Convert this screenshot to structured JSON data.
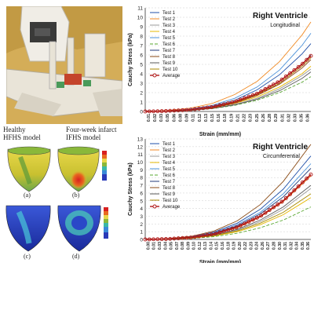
{
  "left_panel": {
    "model_labels": {
      "healthy_line1": "Healthy",
      "healthy_line2": "HFHS model",
      "infarct_line1": "Four-week infarct",
      "infarct_line2": "IFHS model"
    },
    "subfigure_labels": [
      "(a)",
      "(b)",
      "(c)",
      "(d)"
    ],
    "colors": {
      "photo_bg": "#c8a24a",
      "rig": "#ece7db",
      "heart_yellow": "#d9c73a",
      "heart_blue": "#2f3fc8"
    }
  },
  "chart_data": [
    {
      "type": "line",
      "title": "Right Ventricle",
      "subtitle": "Longitudinal",
      "xlabel": "Strain (mm/mm)",
      "ylabel": "Cauchy Stress (kPa)",
      "ylim": [
        0,
        11
      ],
      "yticks": [
        "0",
        "1",
        "2",
        "3",
        "4",
        "5",
        "6",
        "7",
        "8",
        "9",
        "10",
        "11"
      ],
      "xticks": [
        "0.01",
        "0.02",
        "0.03",
        "0.05",
        "0.06",
        "0.08",
        "0.09",
        "0.11",
        "0.12",
        "0.13",
        "0.15",
        "0.16",
        "0.18",
        "0.19",
        "0.21",
        "0.22",
        "0.23",
        "0.25",
        "0.26",
        "0.28",
        "0.29",
        "0.31",
        "0.32",
        "0.33",
        "0.35",
        "0.36"
      ],
      "xlim": [
        0,
        0.37
      ],
      "legend_position": "top-left",
      "grid": "dashed-horizontal",
      "series": [
        {
          "name": "Test 1",
          "color": "#1f4fa8",
          "dash": "",
          "x": [
            0,
            0.05,
            0.1,
            0.15,
            0.2,
            0.25,
            0.3,
            0.35,
            0.37
          ],
          "y": [
            0,
            0.05,
            0.2,
            0.55,
            1.2,
            2.3,
            3.9,
            6.1,
            7.2
          ]
        },
        {
          "name": "Test 2",
          "color": "#f08a24",
          "dash": "",
          "x": [
            0,
            0.05,
            0.1,
            0.15,
            0.2,
            0.25,
            0.3,
            0.35,
            0.37
          ],
          "y": [
            0,
            0.1,
            0.35,
            0.85,
            1.8,
            3.2,
            5.3,
            8.1,
            9.5
          ]
        },
        {
          "name": "Test 3",
          "color": "#9a9a9a",
          "dash": "",
          "x": [
            0,
            0.05,
            0.1,
            0.15,
            0.2,
            0.25,
            0.3,
            0.35,
            0.37
          ],
          "y": [
            0,
            0.03,
            0.12,
            0.35,
            0.75,
            1.4,
            2.4,
            3.8,
            4.5
          ]
        },
        {
          "name": "Test 4",
          "color": "#e6b800",
          "dash": "",
          "x": [
            0,
            0.05,
            0.1,
            0.15,
            0.2,
            0.25,
            0.3,
            0.35,
            0.37
          ],
          "y": [
            0,
            0.04,
            0.16,
            0.4,
            0.85,
            1.55,
            2.6,
            4.0,
            4.8
          ]
        },
        {
          "name": "Test 5",
          "color": "#4a90d9",
          "dash": "",
          "x": [
            0,
            0.05,
            0.1,
            0.15,
            0.2,
            0.25,
            0.3,
            0.35,
            0.37
          ],
          "y": [
            0,
            0.06,
            0.25,
            0.65,
            1.4,
            2.6,
            4.4,
            7.0,
            8.3
          ]
        },
        {
          "name": "Test 6",
          "color": "#5aa832",
          "dash": "4 2",
          "x": [
            0,
            0.05,
            0.1,
            0.15,
            0.2,
            0.25,
            0.3,
            0.35,
            0.37
          ],
          "y": [
            0,
            0.03,
            0.1,
            0.3,
            0.65,
            1.2,
            2.0,
            3.1,
            3.7
          ]
        },
        {
          "name": "Test 7",
          "color": "#203a78",
          "dash": "",
          "x": [
            0,
            0.05,
            0.1,
            0.15,
            0.2,
            0.25,
            0.3,
            0.35,
            0.37
          ],
          "y": [
            0,
            0.05,
            0.18,
            0.45,
            1.0,
            1.9,
            3.2,
            5.0,
            6.0
          ]
        },
        {
          "name": "Test 8",
          "color": "#8a4a14",
          "dash": "",
          "x": [
            0,
            0.05,
            0.1,
            0.15,
            0.2,
            0.25,
            0.3,
            0.35,
            0.37
          ],
          "y": [
            0,
            0.04,
            0.15,
            0.42,
            0.9,
            1.7,
            2.9,
            4.6,
            5.5
          ]
        },
        {
          "name": "Test 9",
          "color": "#5a5a5a",
          "dash": "",
          "x": [
            0,
            0.05,
            0.1,
            0.15,
            0.2,
            0.25,
            0.3,
            0.35,
            0.37
          ],
          "y": [
            0,
            0.03,
            0.12,
            0.32,
            0.7,
            1.3,
            2.2,
            3.5,
            4.2
          ]
        },
        {
          "name": "Test 10",
          "color": "#a88a00",
          "dash": "",
          "x": [
            0,
            0.05,
            0.1,
            0.15,
            0.2,
            0.25,
            0.3,
            0.35,
            0.37
          ],
          "y": [
            0,
            0.04,
            0.16,
            0.44,
            0.95,
            1.8,
            3.0,
            4.8,
            5.7
          ]
        },
        {
          "name": "Average",
          "color": "#b01818",
          "dash": "",
          "marker": "circle",
          "x": [
            0,
            0.05,
            0.1,
            0.15,
            0.2,
            0.25,
            0.3,
            0.35,
            0.37
          ],
          "y": [
            0,
            0.05,
            0.18,
            0.47,
            1.03,
            1.9,
            3.2,
            5.0,
            5.9
          ]
        }
      ]
    },
    {
      "type": "line",
      "title": "Right Ventricle",
      "subtitle": "Circumferential",
      "xlabel": "Strain (mm/mm)",
      "ylabel": "Cauchy Stress (kPa)",
      "ylim": [
        0,
        13
      ],
      "yticks": [
        "0",
        "1",
        "2",
        "3",
        "4",
        "5",
        "6",
        "7",
        "8",
        "9",
        "10",
        "11",
        "12",
        "13"
      ],
      "xticks": [
        "0.00",
        "0.01",
        "0.03",
        "0.04",
        "0.05",
        "0.07",
        "0.08",
        "0.09",
        "0.10",
        "0.12",
        "0.13",
        "0.14",
        "0.15",
        "0.16",
        "0.18",
        "0.19",
        "0.20",
        "0.22",
        "0.23",
        "0.24",
        "0.26",
        "0.27",
        "0.28",
        "0.30",
        "0.31",
        "0.32",
        "0.34",
        "0.35",
        "0.36"
      ],
      "xlim": [
        0,
        0.36
      ],
      "legend_position": "top-left",
      "grid": "dashed-horizontal",
      "series": [
        {
          "name": "Test 1",
          "color": "#1f4fa8",
          "dash": "",
          "x": [
            0,
            0.05,
            0.1,
            0.15,
            0.2,
            0.25,
            0.3,
            0.36
          ],
          "y": [
            0,
            0.08,
            0.35,
            0.95,
            2.1,
            3.9,
            6.5,
            10.8
          ]
        },
        {
          "name": "Test 2",
          "color": "#f08a24",
          "dash": "",
          "x": [
            0,
            0.05,
            0.1,
            0.15,
            0.2,
            0.25,
            0.3,
            0.36
          ],
          "y": [
            0,
            0.06,
            0.25,
            0.7,
            1.5,
            2.9,
            4.9,
            8.2
          ]
        },
        {
          "name": "Test 3",
          "color": "#9a9a9a",
          "dash": "",
          "x": [
            0,
            0.05,
            0.1,
            0.15,
            0.2,
            0.25,
            0.3,
            0.36
          ],
          "y": [
            0,
            0.05,
            0.2,
            0.55,
            1.2,
            2.3,
            3.9,
            6.6
          ]
        },
        {
          "name": "Test 4",
          "color": "#e6b800",
          "dash": "",
          "x": [
            0,
            0.05,
            0.1,
            0.15,
            0.2,
            0.25,
            0.3,
            0.36
          ],
          "y": [
            0,
            0.04,
            0.17,
            0.45,
            1.0,
            1.9,
            3.2,
            5.4
          ]
        },
        {
          "name": "Test 5",
          "color": "#4a90d9",
          "dash": "",
          "x": [
            0,
            0.05,
            0.1,
            0.15,
            0.2,
            0.25,
            0.3,
            0.36
          ],
          "y": [
            0,
            0.07,
            0.3,
            0.85,
            1.9,
            3.5,
            5.9,
            9.8
          ]
        },
        {
          "name": "Test 6",
          "color": "#5aa832",
          "dash": "4 2",
          "x": [
            0,
            0.05,
            0.1,
            0.15,
            0.2,
            0.25,
            0.3,
            0.36
          ],
          "y": [
            0,
            0.03,
            0.13,
            0.36,
            0.8,
            1.5,
            2.5,
            4.2
          ]
        },
        {
          "name": "Test 7",
          "color": "#203a78",
          "dash": "",
          "x": [
            0,
            0.05,
            0.1,
            0.15,
            0.2,
            0.25,
            0.3,
            0.36
          ],
          "y": [
            0,
            0.06,
            0.28,
            0.78,
            1.75,
            3.3,
            5.5,
            9.2
          ]
        },
        {
          "name": "Test 8",
          "color": "#8a4a14",
          "dash": "",
          "x": [
            0,
            0.05,
            0.1,
            0.15,
            0.2,
            0.25,
            0.3,
            0.36
          ],
          "y": [
            0,
            0.1,
            0.4,
            1.1,
            2.4,
            4.5,
            7.5,
            12.3
          ]
        },
        {
          "name": "Test 9",
          "color": "#5a5a5a",
          "dash": "",
          "x": [
            0,
            0.05,
            0.1,
            0.15,
            0.2,
            0.25,
            0.3,
            0.36
          ],
          "y": [
            0,
            0.05,
            0.22,
            0.6,
            1.3,
            2.5,
            4.2,
            7.0
          ]
        },
        {
          "name": "Test 10",
          "color": "#a88a00",
          "dash": "",
          "x": [
            0,
            0.05,
            0.1,
            0.15,
            0.2,
            0.25,
            0.3,
            0.36
          ],
          "y": [
            0,
            0.04,
            0.18,
            0.5,
            1.1,
            2.1,
            3.5,
            5.9
          ]
        },
        {
          "name": "Average",
          "color": "#b01818",
          "dash": "",
          "marker": "circle",
          "x": [
            0,
            0.05,
            0.1,
            0.15,
            0.2,
            0.25,
            0.3,
            0.36
          ],
          "y": [
            0,
            0.06,
            0.25,
            0.7,
            1.6,
            3.0,
            5.0,
            8.4
          ]
        }
      ]
    }
  ]
}
